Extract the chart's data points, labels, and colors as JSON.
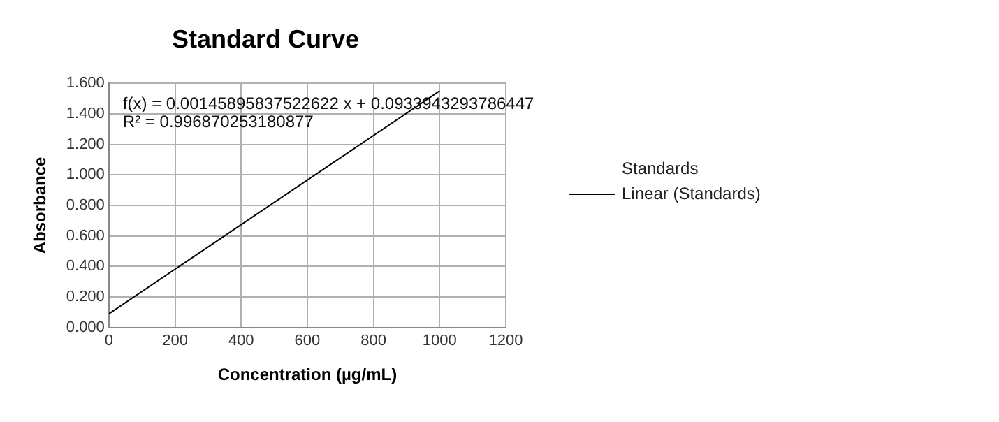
{
  "chart_data": {
    "type": "line",
    "title": "Standard Curve",
    "xlabel": "Concentration (µg/mL)",
    "ylabel": "Absorbance",
    "x": [
      0,
      1000
    ],
    "series": [
      {
        "name": "Standards",
        "type": "scatter",
        "color": "#000000",
        "values": [
          null,
          null
        ]
      },
      {
        "name": "Linear (Standards)",
        "color": "#000000",
        "values": [
          0.09,
          1.55
        ]
      }
    ],
    "xlim": [
      0,
      1200
    ],
    "xticks": [
      0,
      200,
      400,
      600,
      800,
      1000,
      1200
    ],
    "ylim": [
      0,
      1.6
    ],
    "yticks": [
      {
        "value": 0,
        "label": "0.000"
      },
      {
        "value": 0.2,
        "label": "0.200"
      },
      {
        "value": 0.4,
        "label": "0.400"
      },
      {
        "value": 0.6,
        "label": "0.600"
      },
      {
        "value": 0.8,
        "label": "0.800"
      },
      {
        "value": 1,
        "label": "1.000"
      },
      {
        "value": 1.2,
        "label": "1.200"
      },
      {
        "value": 1.4,
        "label": "1.400"
      },
      {
        "value": 1.6,
        "label": "1.600"
      }
    ],
    "grid": true,
    "legend": "right",
    "marker": "none",
    "line_style": "solid",
    "annotations": [
      "f(x) = 0.00145895837522622 x + 0.0933943293786447",
      "R² = 0.996870253180877"
    ]
  }
}
